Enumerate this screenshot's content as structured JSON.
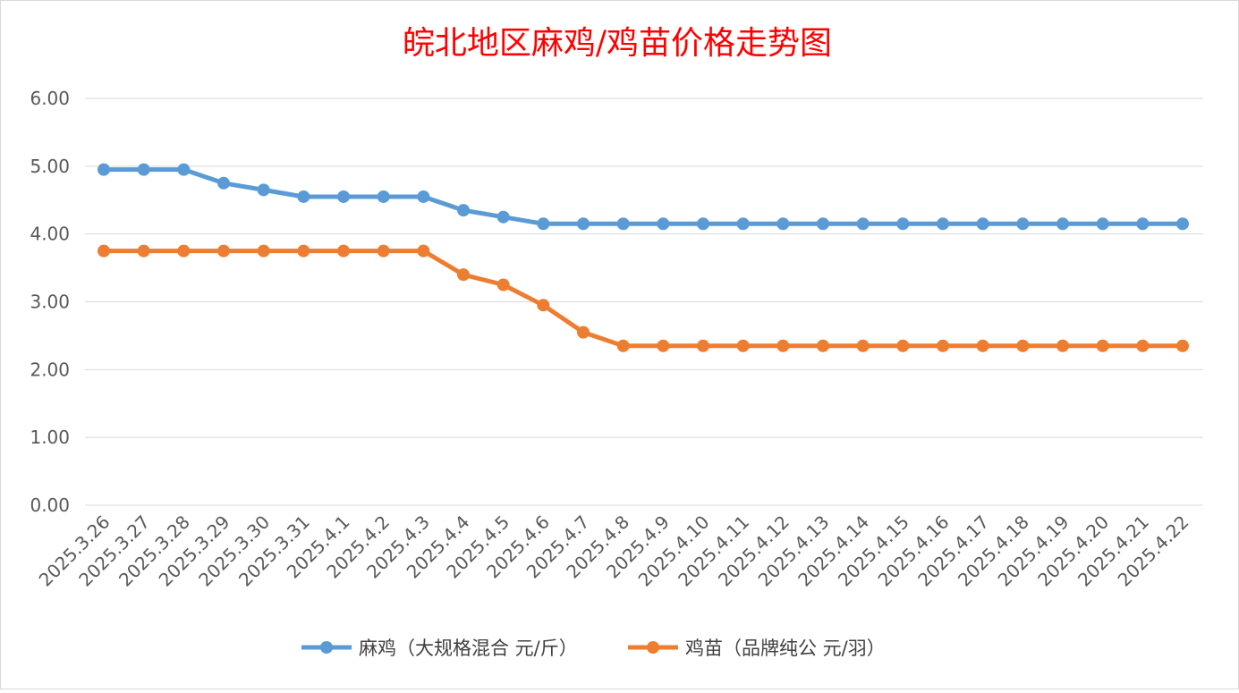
{
  "chart_data": {
    "type": "line",
    "title": "皖北地区麻鸡/鸡苗价格走势图",
    "xlabel": "",
    "ylabel": "",
    "categories": [
      "2025.3.26",
      "2025.3.27",
      "2025.3.28",
      "2025.3.29",
      "2025.3.30",
      "2025.3.31",
      "2025.4.1",
      "2025.4.2",
      "2025.4.3",
      "2025.4.4",
      "2025.4.5",
      "2025.4.6",
      "2025.4.7",
      "2025.4.8",
      "2025.4.9",
      "2025.4.10",
      "2025.4.11",
      "2025.4.12",
      "2025.4.13",
      "2025.4.14",
      "2025.4.15",
      "2025.4.16",
      "2025.4.17",
      "2025.4.18",
      "2025.4.19",
      "2025.4.20",
      "2025.4.21",
      "2025.4.22"
    ],
    "ylim": [
      0,
      6
    ],
    "yticks": [
      "0.00",
      "1.00",
      "2.00",
      "3.00",
      "4.00",
      "5.00",
      "6.00"
    ],
    "grid": true,
    "legend_position": "bottom",
    "series": [
      {
        "name": "麻鸡（大规格混合 元/斤）",
        "color": "#5b9bd5",
        "values": [
          4.95,
          4.95,
          4.95,
          4.75,
          4.65,
          4.55,
          4.55,
          4.55,
          4.55,
          4.35,
          4.25,
          4.15,
          4.15,
          4.15,
          4.15,
          4.15,
          4.15,
          4.15,
          4.15,
          4.15,
          4.15,
          4.15,
          4.15,
          4.15,
          4.15,
          4.15,
          4.15,
          4.15
        ]
      },
      {
        "name": "鸡苗（品牌纯公 元/羽）",
        "color": "#ed7d31",
        "values": [
          3.75,
          3.75,
          3.75,
          3.75,
          3.75,
          3.75,
          3.75,
          3.75,
          3.75,
          3.4,
          3.25,
          2.95,
          2.55,
          2.35,
          2.35,
          2.35,
          2.35,
          2.35,
          2.35,
          2.35,
          2.35,
          2.35,
          2.35,
          2.35,
          2.35,
          2.35,
          2.35,
          2.35
        ]
      }
    ]
  }
}
